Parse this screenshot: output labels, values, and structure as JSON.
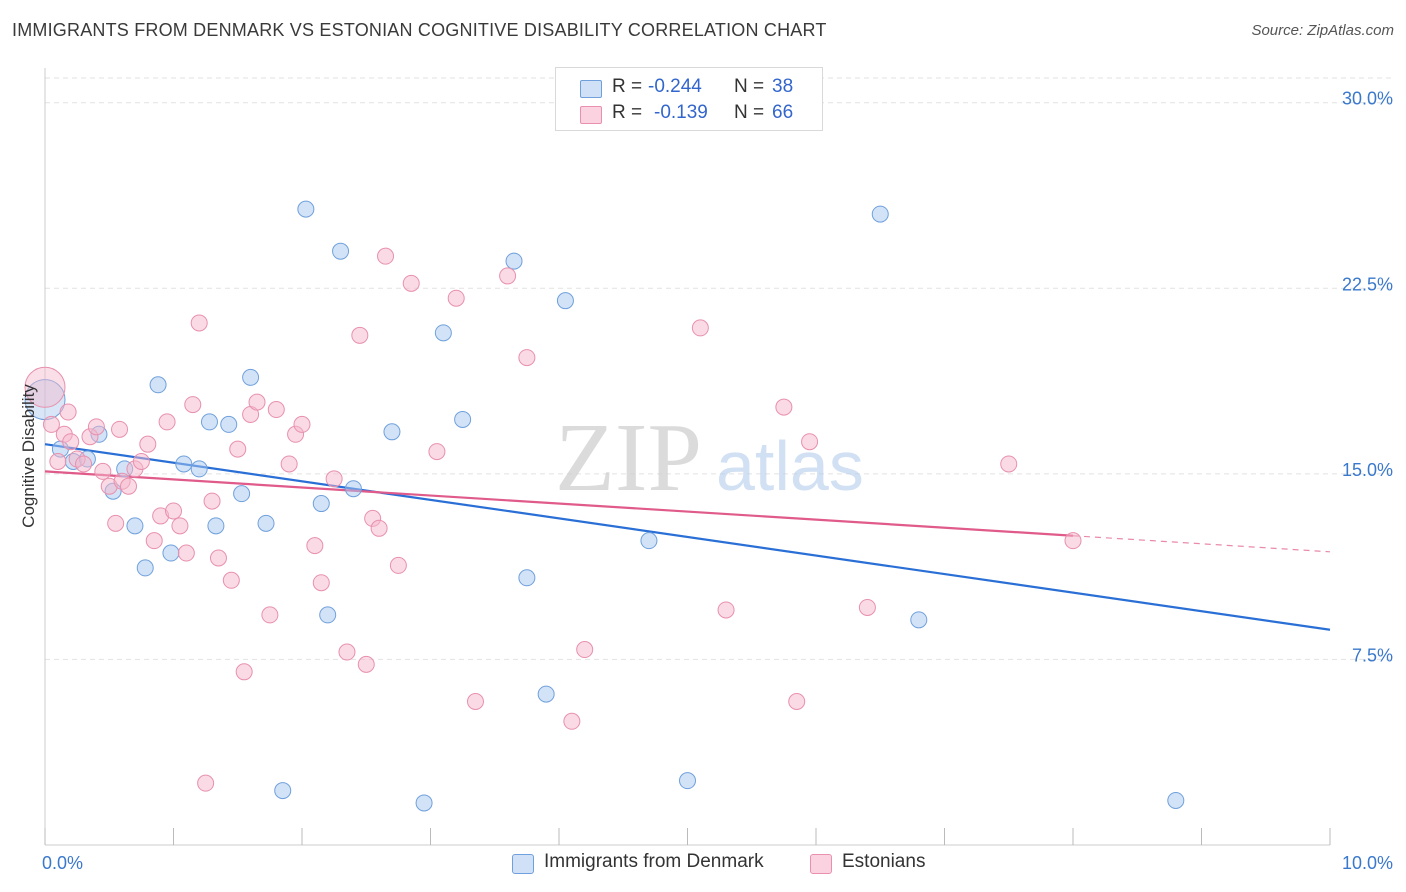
{
  "title": "IMMIGRANTS FROM DENMARK VS ESTONIAN COGNITIVE DISABILITY CORRELATION CHART",
  "source": "Source: ZipAtlas.com",
  "watermark": {
    "zip": "ZIP",
    "atlas": "atlas"
  },
  "legend": {
    "rows": [
      {
        "r_label": "R =",
        "r_value": "-0.244",
        "n_label": "N =",
        "n_value": "38",
        "color": "#a8c8f0"
      },
      {
        "r_label": "R =",
        "r_value": "-0.139",
        "n_label": "N =",
        "n_value": "66",
        "color": "#f5b8cc"
      }
    ]
  },
  "bottom_legend": [
    {
      "label": "Immigrants from Denmark",
      "color": "#a8c8f0"
    },
    {
      "label": "Estonians",
      "color": "#f5b8cc"
    }
  ],
  "colors": {
    "blue_fill": "#a8c8f0",
    "blue_stroke": "#6fa0dc",
    "blue_line": "#2a6fd6",
    "pink_fill": "#f5b8cc",
    "pink_stroke": "#e890ad",
    "pink_line": "#e05a8a",
    "axis_text": "#3a78cc",
    "grid": "#e2e2e2"
  },
  "chart_data": {
    "type": "scatter",
    "title": "IMMIGRANTS FROM DENMARK VS ESTONIAN COGNITIVE DISABILITY CORRELATION CHART",
    "xlabel": "",
    "ylabel": "Cognitive Disability",
    "xlim": [
      0,
      10
    ],
    "ylim": [
      0,
      31
    ],
    "x_tick_labels": [
      "0.0%",
      "10.0%"
    ],
    "y_ticks": [
      7.5,
      15.0,
      22.5,
      30.0
    ],
    "y_tick_labels": [
      "7.5%",
      "15.0%",
      "22.5%",
      "30.0%"
    ],
    "grid": true,
    "legend_position": "top-center",
    "series": [
      {
        "name": "Immigrants from Denmark",
        "color": "#a8c8f0",
        "trend": {
          "x": [
            0.0,
            10.0
          ],
          "y": [
            16.2,
            8.7
          ]
        },
        "points": [
          {
            "x": 0.0,
            "y": 18.0,
            "big": true
          },
          {
            "x": 0.12,
            "y": 16.0
          },
          {
            "x": 0.22,
            "y": 15.5
          },
          {
            "x": 0.42,
            "y": 16.6
          },
          {
            "x": 0.33,
            "y": 15.6
          },
          {
            "x": 0.53,
            "y": 14.3
          },
          {
            "x": 0.62,
            "y": 15.2
          },
          {
            "x": 0.7,
            "y": 12.9
          },
          {
            "x": 0.78,
            "y": 11.2
          },
          {
            "x": 0.88,
            "y": 18.6
          },
          {
            "x": 0.98,
            "y": 11.8
          },
          {
            "x": 1.08,
            "y": 15.4
          },
          {
            "x": 1.2,
            "y": 15.2
          },
          {
            "x": 1.28,
            "y": 17.1
          },
          {
            "x": 1.33,
            "y": 12.9
          },
          {
            "x": 1.43,
            "y": 17.0
          },
          {
            "x": 1.53,
            "y": 14.2
          },
          {
            "x": 1.6,
            "y": 18.9
          },
          {
            "x": 1.72,
            "y": 13.0
          },
          {
            "x": 1.85,
            "y": 2.2
          },
          {
            "x": 2.03,
            "y": 25.7
          },
          {
            "x": 2.15,
            "y": 13.8
          },
          {
            "x": 2.2,
            "y": 9.3
          },
          {
            "x": 2.3,
            "y": 24.0
          },
          {
            "x": 2.4,
            "y": 14.4
          },
          {
            "x": 2.7,
            "y": 16.7
          },
          {
            "x": 2.95,
            "y": 1.7
          },
          {
            "x": 3.1,
            "y": 20.7
          },
          {
            "x": 3.25,
            "y": 17.2
          },
          {
            "x": 3.65,
            "y": 23.6
          },
          {
            "x": 3.75,
            "y": 10.8
          },
          {
            "x": 3.9,
            "y": 6.1
          },
          {
            "x": 4.05,
            "y": 22.0
          },
          {
            "x": 4.7,
            "y": 12.3
          },
          {
            "x": 5.0,
            "y": 2.6
          },
          {
            "x": 6.5,
            "y": 25.5
          },
          {
            "x": 6.8,
            "y": 9.1
          },
          {
            "x": 8.8,
            "y": 1.8
          }
        ]
      },
      {
        "name": "Estonians",
        "color": "#f5b8cc",
        "trend": {
          "x": [
            0.0,
            8.0
          ],
          "y": [
            15.1,
            12.5
          ],
          "dash_to": [
            10.0,
            11.85
          ]
        },
        "points": [
          {
            "x": 0.0,
            "y": 18.5,
            "big": true
          },
          {
            "x": 0.05,
            "y": 17.0
          },
          {
            "x": 0.1,
            "y": 15.5
          },
          {
            "x": 0.15,
            "y": 16.6
          },
          {
            "x": 0.2,
            "y": 16.3
          },
          {
            "x": 0.25,
            "y": 15.6
          },
          {
            "x": 0.3,
            "y": 15.4
          },
          {
            "x": 0.35,
            "y": 16.5
          },
          {
            "x": 0.4,
            "y": 16.9
          },
          {
            "x": 0.45,
            "y": 15.1
          },
          {
            "x": 0.5,
            "y": 14.5
          },
          {
            "x": 0.55,
            "y": 13.0
          },
          {
            "x": 0.6,
            "y": 14.7
          },
          {
            "x": 0.65,
            "y": 14.5
          },
          {
            "x": 0.7,
            "y": 15.2
          },
          {
            "x": 0.75,
            "y": 15.5
          },
          {
            "x": 0.8,
            "y": 16.2
          },
          {
            "x": 0.85,
            "y": 12.3
          },
          {
            "x": 0.9,
            "y": 13.3
          },
          {
            "x": 0.95,
            "y": 17.1
          },
          {
            "x": 1.0,
            "y": 13.5
          },
          {
            "x": 1.05,
            "y": 12.9
          },
          {
            "x": 1.1,
            "y": 11.8
          },
          {
            "x": 1.15,
            "y": 17.8
          },
          {
            "x": 1.2,
            "y": 21.1
          },
          {
            "x": 1.3,
            "y": 13.9
          },
          {
            "x": 1.35,
            "y": 11.6
          },
          {
            "x": 1.45,
            "y": 10.7
          },
          {
            "x": 1.5,
            "y": 16.0
          },
          {
            "x": 1.55,
            "y": 7.0
          },
          {
            "x": 1.6,
            "y": 17.4
          },
          {
            "x": 1.65,
            "y": 17.9
          },
          {
            "x": 1.75,
            "y": 9.3
          },
          {
            "x": 1.8,
            "y": 17.6
          },
          {
            "x": 1.9,
            "y": 15.4
          },
          {
            "x": 1.95,
            "y": 16.6
          },
          {
            "x": 2.0,
            "y": 17.0
          },
          {
            "x": 2.1,
            "y": 12.1
          },
          {
            "x": 2.15,
            "y": 10.6
          },
          {
            "x": 2.25,
            "y": 14.8
          },
          {
            "x": 2.35,
            "y": 7.8
          },
          {
            "x": 2.45,
            "y": 20.6
          },
          {
            "x": 2.5,
            "y": 7.3
          },
          {
            "x": 2.55,
            "y": 13.2
          },
          {
            "x": 2.6,
            "y": 12.8
          },
          {
            "x": 2.65,
            "y": 23.8
          },
          {
            "x": 2.75,
            "y": 11.3
          },
          {
            "x": 2.85,
            "y": 22.7
          },
          {
            "x": 3.05,
            "y": 15.9
          },
          {
            "x": 3.2,
            "y": 22.1
          },
          {
            "x": 3.35,
            "y": 5.8
          },
          {
            "x": 3.6,
            "y": 23.0
          },
          {
            "x": 3.75,
            "y": 19.7
          },
          {
            "x": 4.1,
            "y": 5.0
          },
          {
            "x": 4.2,
            "y": 7.9
          },
          {
            "x": 5.1,
            "y": 20.9
          },
          {
            "x": 5.3,
            "y": 9.5
          },
          {
            "x": 5.75,
            "y": 17.7
          },
          {
            "x": 5.85,
            "y": 5.8
          },
          {
            "x": 5.95,
            "y": 16.3
          },
          {
            "x": 6.4,
            "y": 9.6
          },
          {
            "x": 7.5,
            "y": 15.4
          },
          {
            "x": 8.0,
            "y": 12.3
          },
          {
            "x": 0.18,
            "y": 17.5
          },
          {
            "x": 0.58,
            "y": 16.8
          },
          {
            "x": 1.25,
            "y": 2.5
          }
        ]
      }
    ]
  }
}
